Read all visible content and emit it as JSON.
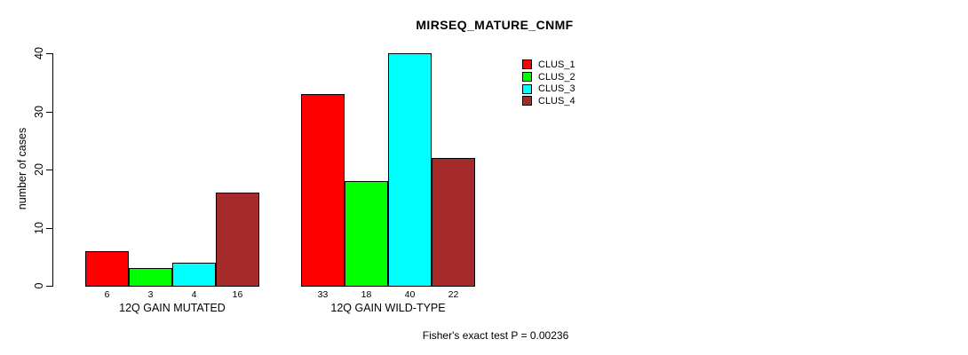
{
  "chart_data": {
    "type": "bar",
    "title": "MIRSEQ_MATURE_CNMF",
    "ylabel": "number of cases",
    "xlabel": "",
    "ylim": [
      0,
      40
    ],
    "yticks": [
      0,
      10,
      20,
      30,
      40
    ],
    "categories": [
      "12Q GAIN MUTATED",
      "12Q GAIN WILD-TYPE"
    ],
    "series": [
      {
        "name": "CLUS_1",
        "color": "#FF0000",
        "values": [
          6,
          33
        ]
      },
      {
        "name": "CLUS_2",
        "color": "#00FF00",
        "values": [
          3,
          18
        ]
      },
      {
        "name": "CLUS_3",
        "color": "#00FFFF",
        "values": [
          4,
          40
        ]
      },
      {
        "name": "CLUS_4",
        "color": "#A52A2A",
        "values": [
          16,
          22
        ]
      }
    ],
    "bar_value_labels": [
      [
        6,
        3,
        4,
        16
      ],
      [
        33,
        18,
        40,
        22
      ]
    ],
    "legend_position": "top-right",
    "grid": false,
    "annotation": "Fisher's exact test P = 0.00236"
  },
  "colors": {
    "background": "#FFFFFF",
    "axis": "#000000",
    "text": "#000000"
  }
}
